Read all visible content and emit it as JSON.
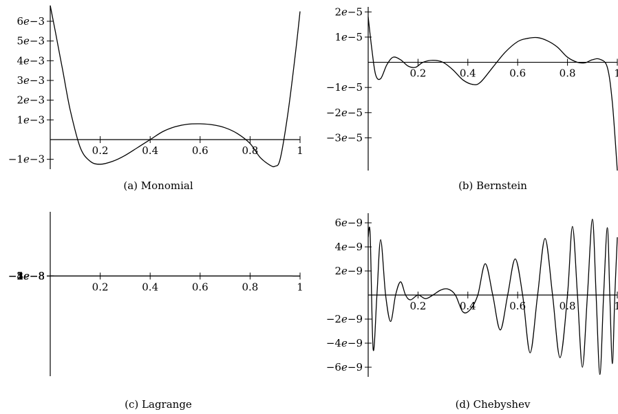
{
  "chart_data": [
    {
      "type": "line",
      "caption": "(a)  Monomial",
      "xlim": [
        0,
        1
      ],
      "ylim": [
        -0.0015,
        0.0068
      ],
      "xticks": [
        0.2,
        0.4,
        0.6,
        0.8,
        1
      ],
      "xtick_labels": [
        "0.2",
        "0.4",
        "0.6",
        "0.8",
        "1"
      ],
      "yticks": [
        -0.001,
        0.001,
        0.002,
        0.003,
        0.004,
        0.005,
        0.006
      ],
      "ytick_labels": [
        [
          "−1",
          "−3"
        ],
        [
          "1",
          "−3"
        ],
        [
          "2",
          "−3"
        ],
        [
          "3",
          "−3"
        ],
        [
          "4",
          "−3"
        ],
        [
          "5",
          "−3"
        ],
        [
          "6",
          "−3"
        ]
      ],
      "series": [
        {
          "x": [
            0,
            0.02,
            0.05,
            0.08,
            0.12,
            0.16,
            0.2,
            0.25,
            0.3,
            0.35,
            0.4,
            0.45,
            0.5,
            0.55,
            0.6,
            0.65,
            0.7,
            0.75,
            0.8,
            0.84,
            0.88,
            0.9,
            0.92,
            0.95,
            0.98,
            1.0
          ],
          "y": [
            0.0068,
            0.0055,
            0.0035,
            0.0015,
            -0.0004,
            -0.0011,
            -0.00125,
            -0.0011,
            -0.0008,
            -0.0004,
            0.0,
            0.0004,
            0.00065,
            0.00078,
            0.0008,
            0.00075,
            0.0006,
            0.0003,
            -0.0002,
            -0.0009,
            -0.0013,
            -0.00135,
            -0.001,
            0.0012,
            0.0042,
            0.0065
          ]
        }
      ]
    },
    {
      "type": "line",
      "caption": "(b)  Bernstein",
      "xlim": [
        0,
        1
      ],
      "ylim": [
        -4.3e-05,
        2.2e-05
      ],
      "xticks": [
        0.2,
        0.4,
        0.6,
        0.8,
        1
      ],
      "xtick_labels": [
        "0.2",
        "0.4",
        "0.6",
        "0.8",
        "1"
      ],
      "yticks": [
        -3e-05,
        -2e-05,
        -1e-05,
        1e-05,
        2e-05
      ],
      "ytick_labels": [
        [
          "−3",
          "−5"
        ],
        [
          "−2",
          "−5"
        ],
        [
          "−1",
          "−5"
        ],
        [
          "1",
          "−5"
        ],
        [
          "2",
          "−5"
        ]
      ],
      "series": [
        {
          "x": [
            0,
            0.015,
            0.03,
            0.05,
            0.075,
            0.1,
            0.13,
            0.16,
            0.19,
            0.22,
            0.26,
            0.3,
            0.34,
            0.38,
            0.42,
            0.45,
            0.5,
            0.55,
            0.6,
            0.64,
            0.68,
            0.72,
            0.76,
            0.8,
            0.84,
            0.87,
            0.9,
            0.93,
            0.96,
            0.98,
            1.0
          ],
          "y": [
            1.8e-05,
            5e-06,
            -5e-06,
            -6.5e-06,
            -1e-06,
            2e-06,
            1e-06,
            -1.5e-06,
            -2e-06,
            0.0,
            8e-07,
            0.0,
            -3e-06,
            -7e-06,
            -8.8e-06,
            -8e-06,
            -2e-06,
            4e-06,
            8.2e-06,
            9.5e-06,
            9.8e-06,
            8.5e-06,
            6e-06,
            2e-06,
            0.0,
            -2e-07,
            1e-06,
            1.2e-06,
            -2e-06,
            -1.6e-05,
            -4.3e-05
          ]
        }
      ]
    },
    {
      "type": "line",
      "caption": "(c)  Lagrange",
      "xlim": [
        0,
        1
      ],
      "ylim": [
        -5.3e-05,
        3.4e-05
      ],
      "xticks": [
        0.2,
        0.4,
        0.6,
        0.8,
        1
      ],
      "xtick_labels": [
        "0.2",
        "0.4",
        "0.6",
        "0.8",
        "1"
      ],
      "yticks": [
        -5e-08,
        -4e-08,
        -3e-08,
        -2e-08,
        -1e-08,
        1e-08,
        2e-08,
        3e-08
      ],
      "ytick_labels": [
        [
          "−5",
          "−8"
        ],
        [
          "−4",
          "−8"
        ],
        [
          "−3",
          "−8"
        ],
        [
          "−2",
          "−8"
        ],
        [
          "−1",
          "−8"
        ],
        [
          "1",
          "−8"
        ],
        [
          "2",
          "−8"
        ],
        [
          "3",
          "−8"
        ]
      ],
      "series": [
        {
          "x": [
            0,
            0.01,
            0.02,
            0.03,
            0.045,
            0.06,
            0.08,
            0.1,
            0.13,
            0.16,
            0.19,
            0.22,
            0.25,
            0.28,
            0.31,
            0.34,
            0.37,
            0.4,
            0.43,
            0.46,
            0.49,
            0.52,
            0.55,
            0.58,
            0.61,
            0.64,
            0.67,
            0.7,
            0.73,
            0.76,
            0.79,
            0.82,
            0.85,
            0.88,
            0.9,
            0.92,
            0.94,
            0.955,
            0.965,
            0.975,
            0.985,
            1.0
          ],
          "y": [
            2.8e-08,
            3.3e-08,
            1.5e-08,
            -3e-09,
            -3e-09,
            2e-09,
            0.0,
            -2e-09,
            0.0,
            1e-09,
            -1e-09,
            0.0,
            1e-09,
            -5e-10,
            1e-09,
            0.0,
            -1e-09,
            0.0,
            1e-09,
            5e-10,
            0.0,
            -2e-09,
            0.0,
            2e-09,
            -1e-09,
            -4e-09,
            0.0,
            3e-09,
            -1e-09,
            -3e-09,
            4e-09,
            0.0,
            -4e-09,
            3e-09,
            0.0,
            -3e-09,
            2e-09,
            6e-09,
            0.0,
            -2.5e-08,
            -5.2e-08,
            -2.5e-08
          ]
        }
      ]
    },
    {
      "type": "line",
      "caption": "(d)  Chebyshev",
      "xlim": [
        0,
        1
      ],
      "ylim": [
        -6.8e-09,
        6.8e-09
      ],
      "xticks": [
        0.2,
        0.4,
        0.6,
        0.8,
        1
      ],
      "xtick_labels": [
        "0.2",
        "0.4",
        "0.6",
        "0.8",
        "1"
      ],
      "yticks": [
        -6e-09,
        -4e-09,
        -2e-09,
        2e-09,
        4e-09,
        6e-09
      ],
      "ytick_labels": [
        [
          "−6",
          "−9"
        ],
        [
          "−4",
          "−9"
        ],
        [
          "−2",
          "−9"
        ],
        [
          "2",
          "−9"
        ],
        [
          "4",
          "−9"
        ],
        [
          "6",
          "−9"
        ]
      ],
      "series": [
        {
          "x": [
            0,
            0.008,
            0.02,
            0.035,
            0.05,
            0.07,
            0.09,
            0.11,
            0.13,
            0.15,
            0.17,
            0.2,
            0.23,
            0.26,
            0.29,
            0.32,
            0.35,
            0.38,
            0.41,
            0.44,
            0.47,
            0.5,
            0.53,
            0.56,
            0.59,
            0.62,
            0.65,
            0.68,
            0.71,
            0.74,
            0.77,
            0.8,
            0.82,
            0.84,
            0.86,
            0.88,
            0.9,
            0.915,
            0.93,
            0.945,
            0.96,
            0.97,
            0.98,
            0.99,
            1.0
          ],
          "y": [
            4.8e-09,
            5e-09,
            -4.5e-09,
            0.0,
            4.6e-09,
            0.0,
            -2.2e-09,
            0.0,
            1.1e-09,
            0.0,
            -4e-10,
            0.0,
            -3e-10,
            0.0,
            4e-10,
            5e-10,
            0.0,
            -1.4e-09,
            -1.2e-09,
            0.0,
            2.6e-09,
            0.0,
            -2.9e-09,
            0.0,
            3e-09,
            0.0,
            -4.8e-09,
            0.0,
            4.7e-09,
            0.0,
            -5.2e-09,
            0.0,
            5.7e-09,
            0.0,
            -6e-09,
            0.0,
            6.3e-09,
            0.0,
            -6.6e-09,
            0.0,
            5.6e-09,
            0.0,
            -5.7e-09,
            0.0,
            4.8e-09
          ]
        }
      ]
    }
  ]
}
